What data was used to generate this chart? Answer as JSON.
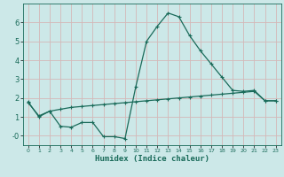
{
  "xlabel": "Humidex (Indice chaleur)",
  "bg_color": "#cce8e8",
  "grid_color": "#b8d8d8",
  "line_color": "#1a6b5a",
  "series1_x": [
    0,
    1,
    2,
    3,
    4,
    5,
    6,
    7,
    8,
    9,
    10,
    11,
    12,
    13,
    14,
    15,
    16,
    17,
    18,
    19,
    20,
    21,
    22,
    23
  ],
  "series1_y": [
    1.8,
    1.0,
    1.3,
    0.5,
    0.45,
    0.7,
    0.7,
    -0.05,
    -0.05,
    -0.15,
    2.6,
    5.0,
    5.8,
    6.5,
    6.3,
    5.3,
    4.5,
    3.8,
    3.1,
    2.4,
    2.35,
    2.4,
    1.85,
    1.85
  ],
  "series2_x": [
    0,
    1,
    2,
    3,
    4,
    5,
    6,
    7,
    8,
    9,
    10,
    11,
    12,
    13,
    14,
    15,
    16,
    17,
    18,
    19,
    20,
    21,
    22,
    23
  ],
  "series2_y": [
    1.75,
    1.05,
    1.3,
    1.4,
    1.5,
    1.55,
    1.6,
    1.65,
    1.7,
    1.75,
    1.8,
    1.85,
    1.9,
    1.95,
    2.0,
    2.05,
    2.1,
    2.15,
    2.2,
    2.25,
    2.3,
    2.35,
    1.85,
    1.85
  ],
  "ylim": [
    -0.5,
    7.0
  ],
  "xlim": [
    -0.5,
    23.5
  ],
  "yticks": [
    0,
    1,
    2,
    3,
    4,
    5,
    6
  ],
  "ytick_labels": [
    "-0",
    "1",
    "2",
    "3",
    "4",
    "5",
    "6"
  ],
  "xticks": [
    0,
    1,
    2,
    3,
    4,
    5,
    6,
    7,
    8,
    9,
    10,
    11,
    12,
    13,
    14,
    15,
    16,
    17,
    18,
    19,
    20,
    21,
    22,
    23
  ]
}
